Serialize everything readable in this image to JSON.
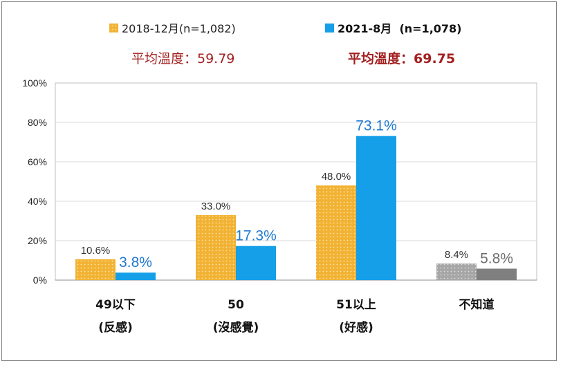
{
  "chart_data": {
    "type": "bar",
    "categories": [
      {
        "line1": "49以下",
        "line2": "(反感)"
      },
      {
        "line1": "50",
        "line2": "(沒感覺)"
      },
      {
        "line1": "51以上",
        "line2": "(好感)"
      },
      {
        "line1": "不知道",
        "line2": ""
      }
    ],
    "series": [
      {
        "name": "2018-12月(n=1,082)",
        "values": [
          10.6,
          33.0,
          48.0,
          8.4
        ],
        "labels": [
          "10.6%",
          "33.0%",
          "48.0%",
          "8.4%"
        ],
        "average_text": "平均溫度：59.79"
      },
      {
        "name": "2021-8月  (n=1,078)",
        "values": [
          3.8,
          17.3,
          73.1,
          5.8
        ],
        "labels": [
          "3.8%",
          "17.3%",
          "73.1%",
          "5.8%"
        ],
        "average_text": "平均溫度：69.75"
      }
    ],
    "ylim": [
      0,
      100
    ],
    "yticks": [
      "0%",
      "20%",
      "40%",
      "60%",
      "80%",
      "100%"
    ],
    "grid": true,
    "legend_position": "top",
    "colors": {
      "series1": "#f2b233",
      "series1_dots": "#fbe4ad",
      "series2": "#149fe8",
      "unknown_series1": "#a6a6a6",
      "unknown_series2": "#7f7f7f",
      "average_text": "#a32020",
      "series2_label": "#1f7ad1"
    }
  }
}
